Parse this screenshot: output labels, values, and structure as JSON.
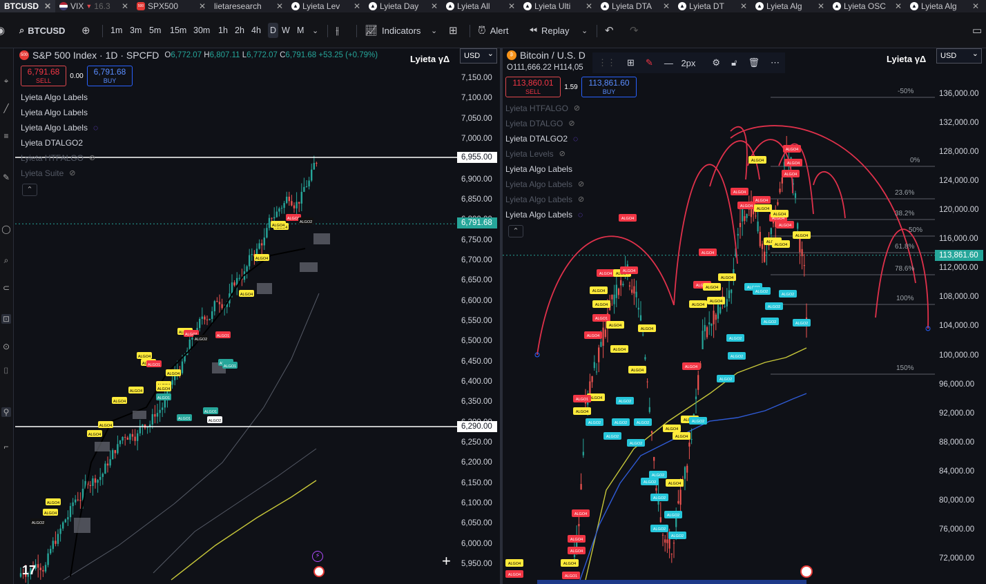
{
  "tabs": [
    {
      "name": "BTCUSD",
      "active": true,
      "icon": "tradingview-logo"
    },
    {
      "name": "VIX",
      "sub": "16.3",
      "down": "▼",
      "icon": "us-flag"
    },
    {
      "name": "SPX500",
      "icon": "spx-badge"
    },
    {
      "name": "lietaresearch",
      "icon": "none"
    },
    {
      "name": "Lyieta Lev",
      "icon": "tradingview-logo"
    },
    {
      "name": "Lyieta Day",
      "icon": "tradingview-logo"
    },
    {
      "name": "Lyieta All",
      "icon": "tradingview-logo"
    },
    {
      "name": "Lyieta Ulti",
      "icon": "tradingview-logo"
    },
    {
      "name": "Lyieta DTA",
      "icon": "tradingview-logo"
    },
    {
      "name": "Lyieta DT",
      "icon": "tradingview-logo"
    },
    {
      "name": "Lyieta Alg",
      "icon": "tradingview-logo"
    },
    {
      "name": "Lyieta OSC",
      "icon": "tradingview-logo"
    },
    {
      "name": "Lyieta Alg",
      "icon": "tradingview-logo"
    }
  ],
  "toolbar": {
    "symbol": "BTCUSD",
    "intervals": [
      "1m",
      "3m",
      "5m",
      "15m",
      "30m",
      "1h",
      "2h",
      "4h",
      "D",
      "W",
      "M"
    ],
    "active_interval": "D",
    "indicators": "Indicators",
    "alert": "Alert",
    "replay": "Replay"
  },
  "left": {
    "title": "S&P 500 Index · 1D · SPCFD",
    "ohlc": {
      "o": "6,772.07",
      "h": "6,807.11",
      "l": "6,772.07",
      "c": "6,791.68",
      "chg": "+53.25 (+0.79%)"
    },
    "brand": "Lyieta γΔ",
    "currency": "USD",
    "sell": "6,791.68",
    "sell_label": "SELL",
    "buy": "6,791.68",
    "buy_label": "BUY",
    "spread": "0.00",
    "indicators": [
      {
        "label": "Lyieta Algo Labels",
        "state": "on"
      },
      {
        "label": "Lyieta Algo Labels",
        "state": "on"
      },
      {
        "label": "Lyieta Algo Labels",
        "state": "loading"
      },
      {
        "label": "Lyieta DTALGO2",
        "state": "on"
      },
      {
        "label": "Lyieta HTFALGO",
        "state": "hidden"
      },
      {
        "label": "Lyieta Suite",
        "state": "hidden"
      }
    ],
    "yaxis": [
      "7,150.00",
      "7,100.00",
      "7,050.00",
      "7,000.00",
      "6,950.00",
      "6,900.00",
      "6,850.00",
      "6,800.00",
      "6,750.00",
      "6,700.00",
      "6,650.00",
      "6,600.00",
      "6,550.00",
      "6,500.00",
      "6,450.00",
      "6,400.00",
      "6,350.00",
      "6,300.00",
      "6,250.00",
      "6,200.00",
      "6,150.00",
      "6,100.00",
      "6,050.00",
      "6,000.00",
      "5,950.00"
    ],
    "hline_upper": "6,955.00",
    "hline_lower": "6,290.00",
    "last_price": "6,791.68"
  },
  "right": {
    "title": "Bitcoin / U.S. D",
    "ohlc": {
      "o": "111,666.22",
      "h": "114,05"
    },
    "brand": "Lyieta γΔ",
    "currency": "USD",
    "sell": "113,860.01",
    "sell_label": "SELL",
    "buy": "113,861.60",
    "buy_label": "BUY",
    "spread": "1.59",
    "stroke_width": "2px",
    "indicators": [
      {
        "label": "Lyieta HTFALGO",
        "state": "hidden"
      },
      {
        "label": "Lyieta DTALGO",
        "state": "hidden"
      },
      {
        "label": "Lyieta DTALGO2",
        "state": "loading"
      },
      {
        "label": "Lyieta Levels",
        "state": "hidden"
      },
      {
        "label": "Lyieta Algo Labels",
        "state": "on"
      },
      {
        "label": "Lyieta Algo Labels",
        "state": "hidden"
      },
      {
        "label": "Lyieta Algo Labels",
        "state": "hidden"
      },
      {
        "label": "Lyieta Algo Labels",
        "state": "loading"
      }
    ],
    "yaxis": [
      "136,000.00",
      "132,000.00",
      "128,000.00",
      "124,000.00",
      "120,000.00",
      "116,000.00",
      "112,000.00",
      "108,000.00",
      "104,000.00",
      "100,000.00",
      "96,000.00",
      "92,000.00",
      "88,000.00",
      "84,000.00",
      "80,000.00",
      "76,000.00",
      "72,000.00"
    ],
    "last_price": "113,861.60",
    "fib_levels": [
      "-50%",
      "0%",
      "23.6%",
      "38.2%",
      "50%",
      "61.8%",
      "78.6%",
      "100%",
      "150%"
    ]
  },
  "label_texts": [
    "ALGO1",
    "ALGO2",
    "ALGO4"
  ],
  "colors": {
    "up": "#26a69a",
    "down": "#ef5350",
    "algo_yellow": "#ffeb3b",
    "algo_red": "#f23645",
    "algo_teal": "#26c6da",
    "arc": "#e0314b",
    "ma_yellow": "#c8c83a",
    "ma_blue": "#2f5bd6"
  }
}
